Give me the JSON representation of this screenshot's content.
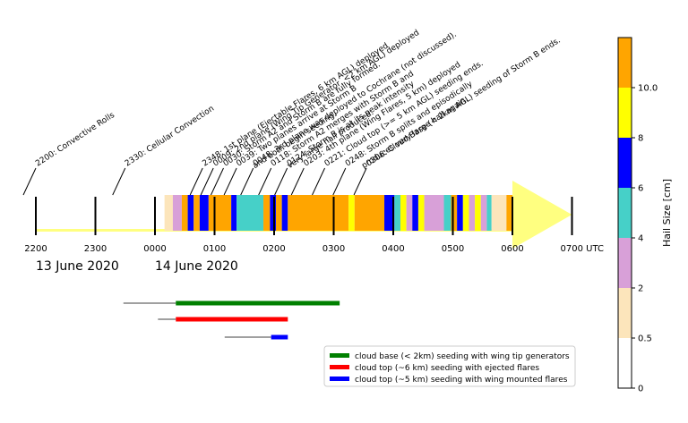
{
  "chart_data": {
    "type": "timeline",
    "time_axis": {
      "ticks": [
        {
          "hour": -2,
          "label": "2200"
        },
        {
          "hour": -1,
          "label": "2300"
        },
        {
          "hour": 0,
          "label": "0000"
        },
        {
          "hour": 1,
          "label": "0100"
        },
        {
          "hour": 2,
          "label": "0200"
        },
        {
          "hour": 3,
          "label": "0300"
        },
        {
          "hour": 4,
          "label": "0400"
        },
        {
          "hour": 5,
          "label": "0500"
        },
        {
          "hour": 6,
          "label": "0600"
        },
        {
          "hour": 7,
          "label": "0700 UTC"
        }
      ],
      "dates": [
        {
          "hour": -2,
          "label": "13 June 2020"
        },
        {
          "hour": 0,
          "label": "14 June 2020"
        }
      ]
    },
    "events": [
      {
        "hour": -2.0,
        "text": "2200: Convective Rolls"
      },
      {
        "hour": -0.5,
        "text": "2330: Cellular Convection"
      },
      {
        "hour": 0.8,
        "text": "2348: 1st plane (Ejectable Flares, 6 km AGL) deployed"
      },
      {
        "hour": 0.98,
        "text": "0009: 2nd plane (Wing Tip Generator, <2 km AGL) deployed"
      },
      {
        "hour": 1.15,
        "text": "0030: Storm A2 and Storm B are fully formed."
      },
      {
        "hour": 1.37,
        "text": "0039: Two planes arrive at Storm B\nand both begin seeding."
      },
      {
        "hour": 1.65,
        "text": "0048: 3rd plane was deployed to Cochrane (not discussed)."
      },
      {
        "hour": 1.95,
        "text": "0118: Storm A2 merges with Storm B and\nvery large hail produced."
      },
      {
        "hour": 2.22,
        "text": "0124: Storm B is at its peak intensity"
      },
      {
        "hour": 2.5,
        "text": "0203: 4th plane (Wing Flares, 5 km) deployed"
      },
      {
        "hour": 2.85,
        "text": "0221: Cloud top (>= 5 km AGL) seeding ends."
      },
      {
        "hour": 3.2,
        "text": "0248: Storm B splits and episodically\nproduces very large hail again."
      },
      {
        "hour": 3.55,
        "text": "0306: Cloud Base (< 2km AGL) seeding of Storm B ends."
      }
    ],
    "hail_segments": [
      {
        "start": 0.16,
        "end": 0.3,
        "size": 1.0
      },
      {
        "start": 0.3,
        "end": 0.45,
        "size": 3.0
      },
      {
        "start": 0.45,
        "end": 0.55,
        "size": 11.0
      },
      {
        "start": 0.55,
        "end": 0.65,
        "size": 7.0
      },
      {
        "start": 0.65,
        "end": 0.75,
        "size": 11.0
      },
      {
        "start": 0.75,
        "end": 0.9,
        "size": 7.0
      },
      {
        "start": 0.9,
        "end": 1.28,
        "size": 11.0
      },
      {
        "start": 1.28,
        "end": 1.37,
        "size": 7.0
      },
      {
        "start": 1.37,
        "end": 1.82,
        "size": 5.0
      },
      {
        "start": 1.82,
        "end": 1.93,
        "size": 11.0
      },
      {
        "start": 1.93,
        "end": 2.03,
        "size": 7.0
      },
      {
        "start": 2.03,
        "end": 2.13,
        "size": 11.0
      },
      {
        "start": 2.13,
        "end": 2.23,
        "size": 7.0
      },
      {
        "start": 2.23,
        "end": 3.25,
        "size": 11.0
      },
      {
        "start": 3.25,
        "end": 3.35,
        "size": 9.0
      },
      {
        "start": 3.35,
        "end": 3.85,
        "size": 11.0
      },
      {
        "start": 3.85,
        "end": 4.02,
        "size": 7.0
      },
      {
        "start": 4.02,
        "end": 4.12,
        "size": 5.0
      },
      {
        "start": 4.12,
        "end": 4.22,
        "size": 9.0
      },
      {
        "start": 4.22,
        "end": 4.32,
        "size": 3.0
      },
      {
        "start": 4.32,
        "end": 4.42,
        "size": 7.0
      },
      {
        "start": 4.42,
        "end": 4.52,
        "size": 9.0
      },
      {
        "start": 4.52,
        "end": 4.85,
        "size": 3.0
      },
      {
        "start": 4.85,
        "end": 4.97,
        "size": 5.0
      },
      {
        "start": 4.97,
        "end": 5.07,
        "size": 11.0
      },
      {
        "start": 5.07,
        "end": 5.17,
        "size": 7.0
      },
      {
        "start": 5.17,
        "end": 5.27,
        "size": 9.0
      },
      {
        "start": 5.27,
        "end": 5.37,
        "size": 3.0
      },
      {
        "start": 5.37,
        "end": 5.47,
        "size": 9.0
      },
      {
        "start": 5.47,
        "end": 5.57,
        "size": 3.0
      },
      {
        "start": 5.57,
        "end": 5.65,
        "size": 5.0
      },
      {
        "start": 5.65,
        "end": 5.9,
        "size": 1.0
      },
      {
        "start": 5.9,
        "end": 6.0,
        "size": 11.0
      }
    ],
    "seeding_periods": [
      {
        "name": "cloud base (< 2km) seeding with wing tip generators",
        "color": "#008000",
        "deployed": -0.53,
        "start": 0.35,
        "end": 3.1
      },
      {
        "name": "cloud top (~6 km) seeding with ejected flares",
        "color": "#ff0000",
        "deployed": 0.05,
        "start": 0.35,
        "end": 2.23
      },
      {
        "name": "cloud top (~5 km) seeding with wing mounted flares",
        "color": "#0000ff",
        "deployed": 1.17,
        "start": 1.95,
        "end": 2.23
      }
    ],
    "colorbar": {
      "label": "Hail Size [cm]",
      "ticks": [
        "0",
        "0.5",
        "2",
        "4",
        "6",
        "8",
        "10.0"
      ],
      "bins": [
        {
          "color": "#ffffff"
        },
        {
          "color": "#fce5bb"
        },
        {
          "color": "#d8a0d8"
        },
        {
          "color": "#46d0c8"
        },
        {
          "color": "#0000ff"
        },
        {
          "color": "#ffff00"
        },
        {
          "color": "#ffa500"
        }
      ]
    },
    "colors": {
      "forecast_band": "#ffff80",
      "arrow": "#ffff80"
    }
  }
}
